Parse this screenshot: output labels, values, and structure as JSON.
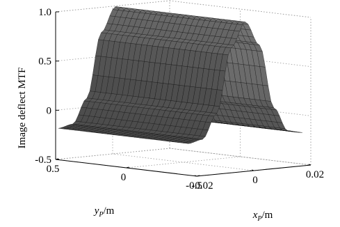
{
  "chart_data": {
    "type": "surface",
    "title": "",
    "zlabel": "Image deflect MTF",
    "xlabel": {
      "var": "x",
      "sub": "P",
      "unit": "/m"
    },
    "ylabel": {
      "var": "y",
      "sub": "P",
      "unit": "/m"
    },
    "xlim": [
      -0.02,
      0.02
    ],
    "ylim": [
      -0.5,
      0.5
    ],
    "zlim": [
      -0.5,
      1.0
    ],
    "x_ticks": [
      "-0.02",
      "0",
      "0.02"
    ],
    "y_ticks": [
      "0.5",
      "0",
      "-0.5"
    ],
    "z_ticks": [
      "-0.5",
      "0",
      "0.5",
      "1.0"
    ],
    "surface": {
      "description_of_values": "z depends only on x_P; constant along y_P",
      "x": [
        -0.02,
        -0.015,
        -0.01,
        -0.005,
        0,
        0.005,
        0.01,
        0.015,
        0.02
      ],
      "z": [
        -0.18,
        -0.15,
        0.1,
        0.75,
        1.0,
        0.75,
        0.1,
        -0.15,
        -0.18
      ]
    },
    "grid": true,
    "colormap": "gray"
  }
}
